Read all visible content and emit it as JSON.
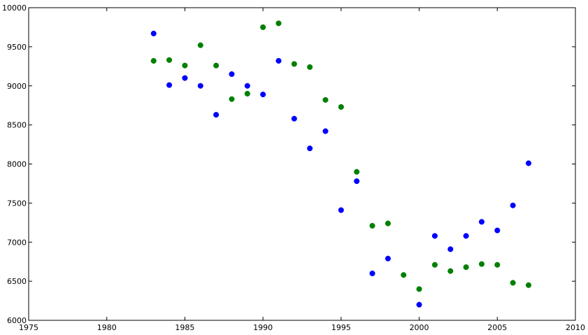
{
  "chart_data": {
    "type": "scatter",
    "title": "",
    "xlabel": "",
    "ylabel": "",
    "xlim": [
      1975,
      2010
    ],
    "ylim": [
      6000,
      10000
    ],
    "x_ticks": [
      "1975",
      "1980",
      "1985",
      "1990",
      "1995",
      "2000",
      "2005",
      "2010"
    ],
    "y_ticks": [
      "6000",
      "6500",
      "7000",
      "7500",
      "8000",
      "8500",
      "9000",
      "9500",
      "10000"
    ],
    "grid": false,
    "legend": "none",
    "series": [
      {
        "color": "#0000ff",
        "points": [
          [
            1983,
            9670
          ],
          [
            1984,
            9010
          ],
          [
            1985,
            9100
          ],
          [
            1986,
            9000
          ],
          [
            1987,
            8630
          ],
          [
            1988,
            9150
          ],
          [
            1989,
            9000
          ],
          [
            1990,
            8890
          ],
          [
            1991,
            9320
          ],
          [
            1992,
            8580
          ],
          [
            1993,
            8200
          ],
          [
            1994,
            8420
          ],
          [
            1995,
            7410
          ],
          [
            1996,
            7780
          ],
          [
            1997,
            6600
          ],
          [
            1998,
            6790
          ],
          [
            2000,
            6200
          ],
          [
            2001,
            7080
          ],
          [
            2002,
            6910
          ],
          [
            2003,
            7080
          ],
          [
            2004,
            7260
          ],
          [
            2005,
            7150
          ],
          [
            2006,
            7470
          ],
          [
            2007,
            8010
          ]
        ]
      },
      {
        "color": "#008000",
        "points": [
          [
            1983,
            9320
          ],
          [
            1984,
            9330
          ],
          [
            1985,
            9260
          ],
          [
            1986,
            9520
          ],
          [
            1987,
            9260
          ],
          [
            1988,
            8830
          ],
          [
            1989,
            8900
          ],
          [
            1990,
            9750
          ],
          [
            1991,
            9800
          ],
          [
            1992,
            9280
          ],
          [
            1993,
            9240
          ],
          [
            1994,
            8820
          ],
          [
            1995,
            8730
          ],
          [
            1996,
            7900
          ],
          [
            1997,
            7210
          ],
          [
            1998,
            7240
          ],
          [
            1999,
            6580
          ],
          [
            2000,
            6400
          ],
          [
            2001,
            6710
          ],
          [
            2002,
            6630
          ],
          [
            2003,
            6680
          ],
          [
            2004,
            6720
          ],
          [
            2005,
            6710
          ],
          [
            2006,
            6480
          ],
          [
            2007,
            6450
          ]
        ]
      }
    ]
  }
}
